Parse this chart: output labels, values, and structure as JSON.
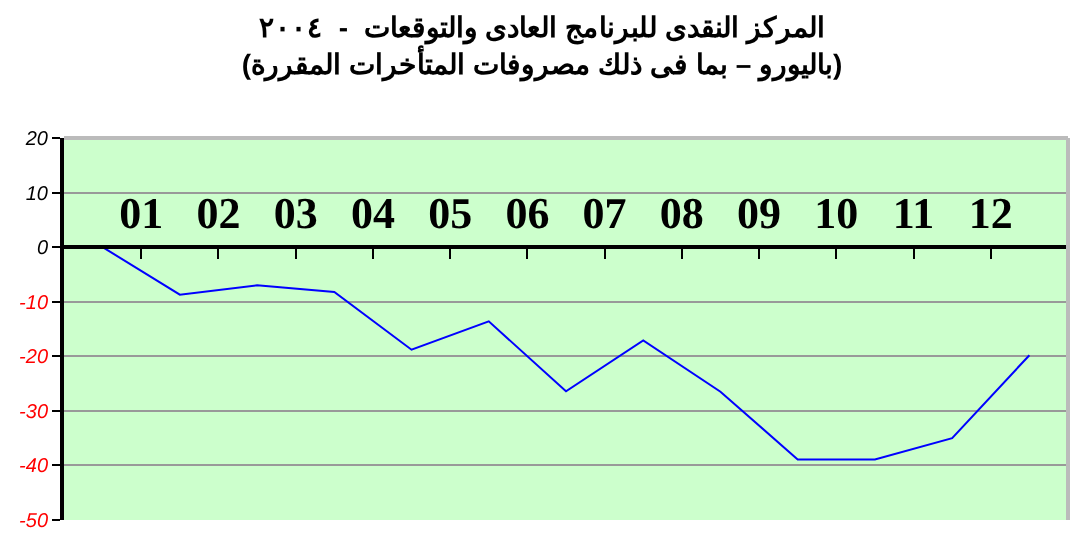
{
  "chart_data": {
    "type": "line",
    "title": "المركز النقدى للبرنامج العادى والتوقعات  -  ٢٠٠٤",
    "subtitle": "(باليورو – بما فى ذلك مصروفات المتأخرات المقررة)",
    "x": [
      0,
      1,
      2,
      3,
      4,
      5,
      6,
      7,
      8,
      9,
      10,
      11,
      12
    ],
    "series": [
      {
        "color": "#0000ff",
        "values": [
          0,
          -8.7,
          -7,
          -8.2,
          -18.8,
          -13.6,
          -26.4,
          -17.1,
          -26.5,
          -38.9,
          -38.9,
          -35,
          -19.8
        ]
      }
    ],
    "xlim": [
      -0.5,
      12.5
    ],
    "xticks": [
      {
        "value": 0.5,
        "label": "01"
      },
      {
        "value": 1.5,
        "label": "02"
      },
      {
        "value": 2.5,
        "label": "03"
      },
      {
        "value": 3.5,
        "label": "04"
      },
      {
        "value": 4.5,
        "label": "05"
      },
      {
        "value": 5.5,
        "label": "06"
      },
      {
        "value": 6.5,
        "label": "07"
      },
      {
        "value": 7.5,
        "label": "08"
      },
      {
        "value": 8.5,
        "label": "09"
      },
      {
        "value": 9.5,
        "label": "10"
      },
      {
        "value": 10.5,
        "label": "11"
      },
      {
        "value": 11.5,
        "label": "12"
      },
      {
        "value": 12.5,
        "label": null
      }
    ],
    "ylim": [
      -50,
      20
    ],
    "yticks": [
      -50,
      -40,
      -30,
      -20,
      -10,
      0,
      10,
      20
    ],
    "grid": "y",
    "marker": "none",
    "line_style": "solid"
  }
}
